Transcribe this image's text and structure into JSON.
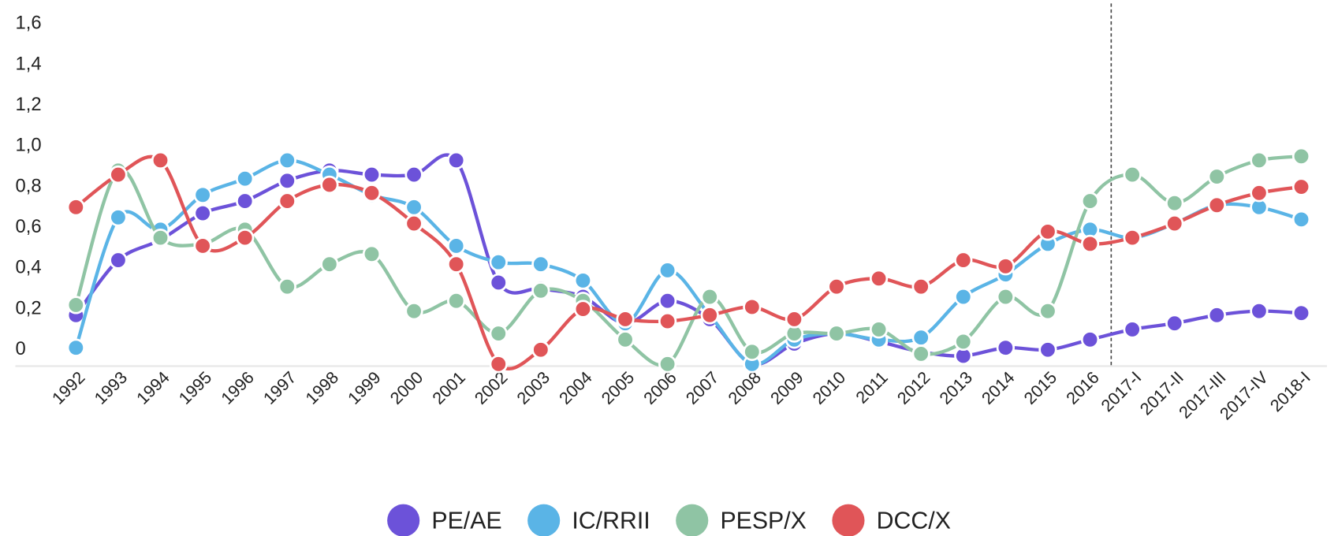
{
  "chart_data": {
    "type": "line",
    "categories": [
      "1992",
      "1993",
      "1994",
      "1995",
      "1996",
      "1997",
      "1998",
      "1999",
      "2000",
      "2001",
      "2002",
      "2003",
      "2004",
      "2005",
      "2006",
      "2007",
      "2008",
      "2009",
      "2010",
      "2011",
      "2012",
      "2013",
      "2014",
      "2015",
      "2016",
      "2017-I",
      "2017-II",
      "2017-III",
      "2017-IV",
      "2018-I"
    ],
    "series": [
      {
        "name": "PE/AE",
        "color": "#6c52d9",
        "values": [
          0.17,
          0.44,
          0.54,
          0.67,
          0.73,
          0.83,
          0.88,
          0.86,
          0.86,
          0.93,
          0.33,
          0.3,
          0.26,
          0.13,
          0.24,
          0.15,
          -0.07,
          0.03,
          0.08,
          0.04,
          -0.01,
          -0.03,
          0.01,
          0.0,
          0.05,
          0.1,
          0.13,
          0.17,
          0.19,
          0.18
        ]
      },
      {
        "name": "IC/RRII",
        "color": "#5ab4e6",
        "values": [
          0.01,
          0.65,
          0.59,
          0.76,
          0.84,
          0.93,
          0.86,
          0.76,
          0.7,
          0.51,
          0.43,
          0.42,
          0.34,
          0.13,
          0.39,
          0.17,
          -0.07,
          0.05,
          0.08,
          0.05,
          0.06,
          0.26,
          0.37,
          0.52,
          0.59,
          0.55,
          0.62,
          0.71,
          0.7,
          0.64
        ]
      },
      {
        "name": "PESP/X",
        "color": "#8fc4a4",
        "values": [
          0.22,
          0.88,
          0.55,
          0.52,
          0.59,
          0.31,
          0.42,
          0.47,
          0.19,
          0.24,
          0.08,
          0.29,
          0.24,
          0.05,
          -0.07,
          0.26,
          -0.01,
          0.08,
          0.08,
          0.1,
          -0.02,
          0.04,
          0.26,
          0.19,
          0.73,
          0.86,
          0.72,
          0.85,
          0.93,
          0.95
        ]
      },
      {
        "name": "DCC/X",
        "color": "#e05558",
        "values": [
          0.7,
          0.86,
          0.93,
          0.51,
          0.55,
          0.73,
          0.81,
          0.77,
          0.62,
          0.42,
          -0.07,
          0.0,
          0.2,
          0.15,
          0.14,
          0.17,
          0.21,
          0.15,
          0.31,
          0.35,
          0.31,
          0.44,
          0.41,
          0.58,
          0.52,
          0.55,
          0.62,
          0.71,
          0.77,
          0.8
        ]
      }
    ],
    "ylim": [
      -0.08,
      1.7
    ],
    "yticks": [
      0,
      {
        "value": 0.2,
        "label": "0,2"
      },
      {
        "value": 0.4,
        "label": "0,4"
      },
      {
        "value": 0.6,
        "label": "0,6"
      },
      {
        "value": 0.8,
        "label": "0,8"
      },
      {
        "value": 1.0,
        "label": "1,0"
      },
      {
        "value": 1.2,
        "label": "1,2"
      },
      {
        "value": 1.4,
        "label": "1,4"
      },
      {
        "value": 1.6,
        "label": "1,6"
      }
    ],
    "legend": "bottom"
  }
}
